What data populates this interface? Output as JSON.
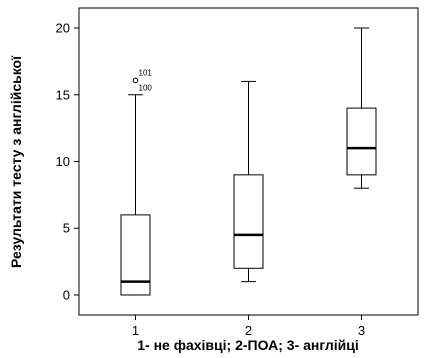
{
  "chart_data": {
    "type": "boxplot",
    "xlabel": "1- не фахівці; 2-ПОА; 3- англійці",
    "ylabel": "Результати тесту з англійської",
    "ylim": [
      -1.5,
      21.5
    ],
    "yticks": [
      "0",
      "5",
      "10",
      "15",
      "20"
    ],
    "categories": [
      "1",
      "2",
      "3"
    ],
    "boxes": [
      {
        "category": "1",
        "min": 0,
        "q1": 0,
        "median": 1,
        "q3": 6,
        "max": 15,
        "outliers": [
          {
            "value": 16,
            "label": "101"
          },
          {
            "value": 16,
            "label": "100"
          }
        ]
      },
      {
        "category": "2",
        "min": 1,
        "q1": 2,
        "median": 4.5,
        "q3": 9,
        "max": 16,
        "outliers": []
      },
      {
        "category": "3",
        "min": 8,
        "q1": 9,
        "median": 11,
        "q3": 14,
        "max": 20,
        "outliers": []
      }
    ],
    "grid": false,
    "legend": "none"
  }
}
